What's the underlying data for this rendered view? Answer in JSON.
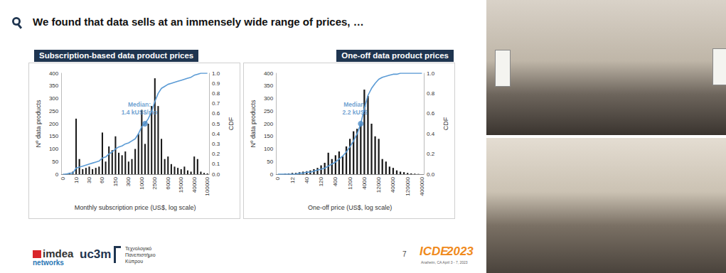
{
  "slide": {
    "title": "We found that data sells at an immensely wide range of prices, …",
    "logos": [
      "imdea",
      "networks",
      "uc3m",
      "Τεχνολογικό",
      "Πανεπιστήμιο",
      "Κύπρου"
    ],
    "page": "7",
    "conference": [
      "ICDE",
      "2023",
      "Anaheim, CA April 3 - 7, 2023"
    ]
  },
  "chart_data": [
    {
      "type": "bar",
      "title": "Subscription-based data product prices",
      "x_label": "Monthly subscription price (US$, log scale)",
      "y_label": "Nº data products",
      "y2_label": "CDF",
      "categories": [
        "0",
        null,
        null,
        null,
        "10",
        null,
        null,
        null,
        "30",
        null,
        null,
        null,
        "60",
        null,
        null,
        null,
        "150",
        null,
        null,
        null,
        "300",
        null,
        null,
        null,
        "1000",
        null,
        null,
        null,
        "2500",
        null,
        null,
        null,
        "6000",
        null,
        null,
        null,
        "15000",
        null,
        null,
        null,
        "40000",
        null,
        null,
        null,
        "100000"
      ],
      "series": [
        {
          "type": "bar",
          "color": "#1a1a1a",
          "values": [
            0,
            2,
            5,
            10,
            220,
            60,
            20,
            25,
            30,
            20,
            25,
            30,
            165,
            50,
            110,
            95,
            150,
            85,
            75,
            90,
            50,
            60,
            100,
            160,
            255,
            120,
            200,
            270,
            380,
            270,
            140,
            60,
            70,
            40,
            30,
            25,
            20,
            30,
            15,
            10,
            70,
            60,
            10,
            5,
            3
          ]
        },
        {
          "type": "line",
          "axis": "y2",
          "color": "#5b9bd5",
          "values": [
            0,
            0,
            0.01,
            0.01,
            0.06,
            0.07,
            0.08,
            0.09,
            0.1,
            0.11,
            0.12,
            0.13,
            0.16,
            0.17,
            0.2,
            0.22,
            0.25,
            0.27,
            0.28,
            0.3,
            0.31,
            0.33,
            0.35,
            0.4,
            0.47,
            0.5,
            0.55,
            0.62,
            0.72,
            0.8,
            0.85,
            0.87,
            0.89,
            0.9,
            0.91,
            0.92,
            0.93,
            0.94,
            0.95,
            0.96,
            0.98,
            0.99,
            1.0,
            1.0,
            1.0
          ]
        }
      ],
      "median": {
        "text": [
          "Median:",
          "1.4 kUS$/mo"
        ],
        "value": 0.5,
        "color": "#4a8ac6"
      },
      "ylim": [
        0,
        400
      ],
      "yticks": [
        0,
        50,
        100,
        150,
        200,
        250,
        300,
        350,
        400
      ],
      "y2lim": [
        0,
        1
      ],
      "y2ticks": [
        {
          "value": 0,
          "label": "0.0"
        },
        {
          "value": 0.1,
          "label": "0.1"
        },
        {
          "value": 0.2,
          "label": "0.2"
        },
        {
          "value": 0.3,
          "label": "0.3"
        },
        {
          "value": 0.4,
          "label": "0.4"
        },
        {
          "value": 0.5,
          "label": "0.5"
        },
        {
          "value": 0.6,
          "label": "0.6"
        },
        {
          "value": 0.7,
          "label": "0.7"
        },
        {
          "value": 0.8,
          "label": "0.8"
        },
        {
          "value": 0.9,
          "label": "0.9"
        },
        {
          "value": 1,
          "label": "1.0"
        }
      ],
      "grid": false
    },
    {
      "type": "bar",
      "title": "One-off data product prices",
      "x_label": "One-off price (US$, log scale)",
      "y_label": "Nº data products",
      "y2_label": "CDF",
      "categories": [
        "0",
        null,
        null,
        null,
        "12",
        null,
        null,
        null,
        "40",
        null,
        null,
        null,
        "120",
        null,
        null,
        null,
        "400",
        null,
        null,
        null,
        "1200",
        null,
        null,
        null,
        "4000",
        null,
        null,
        null,
        "12000",
        null,
        null,
        null,
        "40000",
        null,
        null,
        null,
        "120000",
        null,
        null,
        null,
        "400000"
      ],
      "series": [
        {
          "type": "bar",
          "color": "#1a1a1a",
          "values": [
            0,
            0,
            2,
            3,
            5,
            5,
            8,
            10,
            12,
            15,
            20,
            25,
            35,
            45,
            85,
            60,
            75,
            90,
            70,
            110,
            140,
            170,
            180,
            200,
            335,
            310,
            200,
            150,
            140,
            60,
            50,
            30,
            25,
            15,
            10,
            8,
            5,
            3,
            2,
            1,
            0
          ]
        },
        {
          "type": "line",
          "axis": "y2",
          "color": "#5b9bd5",
          "values": [
            0,
            0,
            0,
            0,
            0,
            0,
            0.01,
            0.01,
            0.02,
            0.02,
            0.03,
            0.04,
            0.05,
            0.06,
            0.08,
            0.1,
            0.12,
            0.15,
            0.18,
            0.22,
            0.27,
            0.33,
            0.4,
            0.5,
            0.65,
            0.78,
            0.85,
            0.9,
            0.94,
            0.96,
            0.97,
            0.98,
            0.99,
            0.99,
            1.0,
            1.0,
            1.0,
            1.0,
            1.0,
            1.0,
            1.0
          ]
        }
      ],
      "median": {
        "text": [
          "Median:",
          "2.2 kUS$"
        ],
        "value": 0.5,
        "color": "#4a8ac6"
      },
      "ylim": [
        0,
        400
      ],
      "yticks": [
        0,
        50,
        100,
        150,
        200,
        250,
        300,
        350,
        400
      ],
      "y2lim": [
        0,
        1
      ],
      "y2ticks": [
        {
          "value": 0,
          "label": "0.0"
        },
        {
          "value": 0.2,
          "label": "0.2"
        },
        {
          "value": 0.4,
          "label": "0.4"
        },
        {
          "value": 0.6,
          "label": "0.6"
        },
        {
          "value": 0.8,
          "label": "0.8"
        },
        {
          "value": 1,
          "label": "1.0"
        }
      ],
      "grid": false
    }
  ]
}
